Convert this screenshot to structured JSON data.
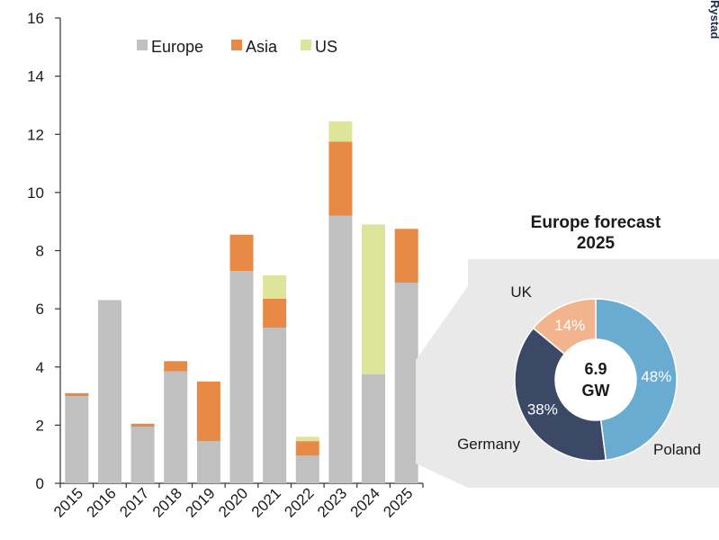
{
  "brand": "Rystad",
  "colors": {
    "Europe": "#c0c0c0",
    "Asia": "#e68a46",
    "US": "#dde59a",
    "inset_bg": "#e9e9e9",
    "axis": "#333333"
  },
  "chart_data": [
    {
      "type": "bar",
      "stacked": true,
      "title": "",
      "xlabel": "",
      "ylabel": "",
      "categories": [
        "2015",
        "2016",
        "2017",
        "2018",
        "2019",
        "2020",
        "2021",
        "2022",
        "2023",
        "2024",
        "2025"
      ],
      "series": [
        {
          "name": "Europe",
          "values": [
            3.0,
            6.3,
            1.95,
            3.85,
            1.45,
            7.3,
            5.35,
            0.95,
            9.2,
            3.75,
            6.9
          ]
        },
        {
          "name": "Asia",
          "values": [
            0.1,
            0,
            0.1,
            0.35,
            2.05,
            1.25,
            1.0,
            0.5,
            2.55,
            0,
            1.85
          ]
        },
        {
          "name": "US",
          "values": [
            0,
            0,
            0,
            0,
            0,
            0,
            0.8,
            0.15,
            0.7,
            5.15,
            0
          ]
        }
      ],
      "ylim": [
        0,
        16
      ],
      "yticks": [
        0,
        2,
        4,
        6,
        8,
        10,
        12,
        14,
        16
      ],
      "grid": false,
      "legend_position": "top-left"
    },
    {
      "type": "pie",
      "donut": true,
      "title": "Europe forecast 2025",
      "title_lines": [
        "Europe forecast",
        "2025"
      ],
      "center_label_lines": [
        "6.9",
        "GW"
      ],
      "slices": [
        {
          "label": "Poland",
          "value": 48,
          "pct_label": "48%",
          "color": "#6aabd2"
        },
        {
          "label": "Germany",
          "value": 38,
          "pct_label": "38%",
          "color": "#3b4866"
        },
        {
          "label": "UK",
          "value": 14,
          "pct_label": "14%",
          "color": "#f2b48c"
        }
      ]
    }
  ]
}
